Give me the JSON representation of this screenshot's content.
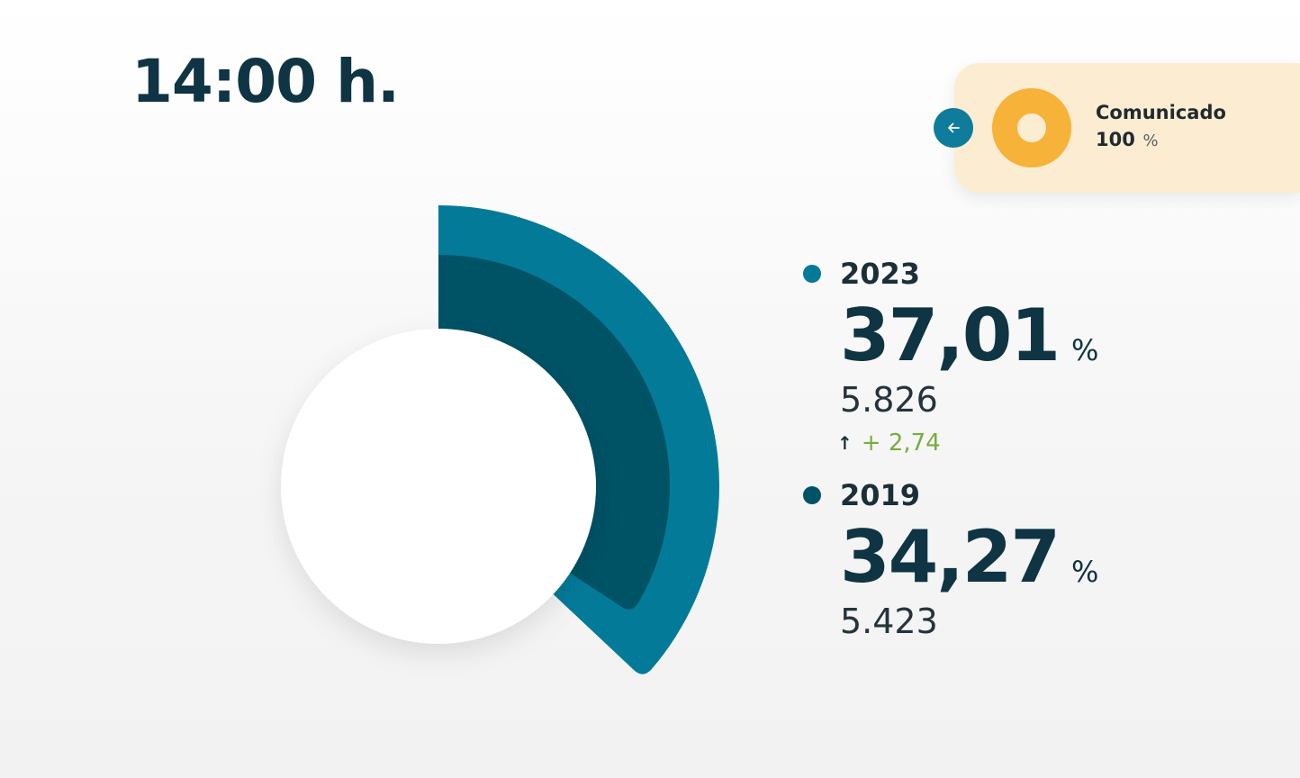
{
  "header": {
    "time_title": "14:00 h."
  },
  "reported": {
    "label": "Comunicado",
    "value": "100",
    "unit": "%",
    "progress_percent": 100,
    "ring_color": "#f7b239"
  },
  "back_button": {
    "icon": "arrow-left-icon",
    "color": "#0e7c9a"
  },
  "chart_data": {
    "type": "donut",
    "series": [
      {
        "name": "2023",
        "percent": 37.01,
        "color": "#047a99"
      },
      {
        "name": "2019",
        "percent": 34.27,
        "color": "#005265"
      }
    ]
  },
  "legend": {
    "series_2023": {
      "year": "2023",
      "percent_label": "37,01",
      "unit": "%",
      "count": "5.826",
      "delta_arrow": "↑",
      "delta": "+ 2,74",
      "color": "#047a99"
    },
    "series_2019": {
      "year": "2019",
      "percent_label": "34,27",
      "unit": "%",
      "count": "5.423",
      "color": "#005265"
    }
  }
}
